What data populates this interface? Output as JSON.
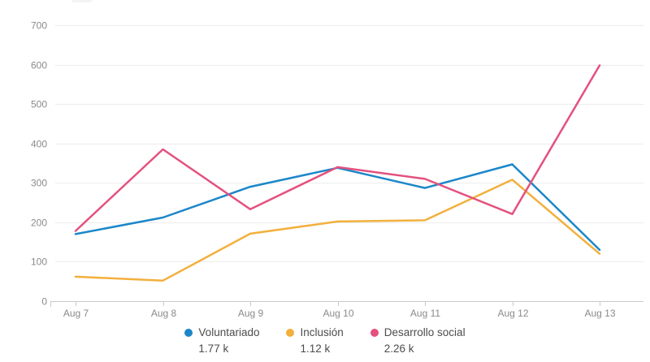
{
  "chart_data": {
    "type": "line",
    "title": "",
    "xlabel": "",
    "ylabel": "",
    "categories": [
      "Aug 7",
      "Aug 8",
      "Aug 9",
      "Aug 10",
      "Aug 11",
      "Aug 12",
      "Aug 13"
    ],
    "series": [
      {
        "name": "Voluntariado",
        "total": "1.77 k",
        "color": "#1b87c9",
        "values": [
          170,
          212,
          290,
          338,
          287,
          347,
          130
        ]
      },
      {
        "name": "Inclusión",
        "total": "1.12 k",
        "color": "#f2b03d",
        "values": [
          62,
          52,
          171,
          202,
          205,
          308,
          120
        ]
      },
      {
        "name": "Desarrollo social",
        "total": "2.26 k",
        "color": "#e4517e",
        "values": [
          178,
          385,
          233,
          340,
          310,
          221,
          598
        ]
      }
    ],
    "ylim": [
      0,
      700
    ],
    "yticks": [
      0,
      100,
      200,
      300,
      400,
      500,
      600,
      700
    ],
    "grid": true,
    "legend_position": "bottom"
  },
  "colors": {
    "background": "#ffffff",
    "gridline": "#ececec",
    "axis_line": "#c9c9c9",
    "tick": "#c9c9c9",
    "axis_text": "#8a8a8a",
    "legend_text": "#4c4c4c"
  }
}
